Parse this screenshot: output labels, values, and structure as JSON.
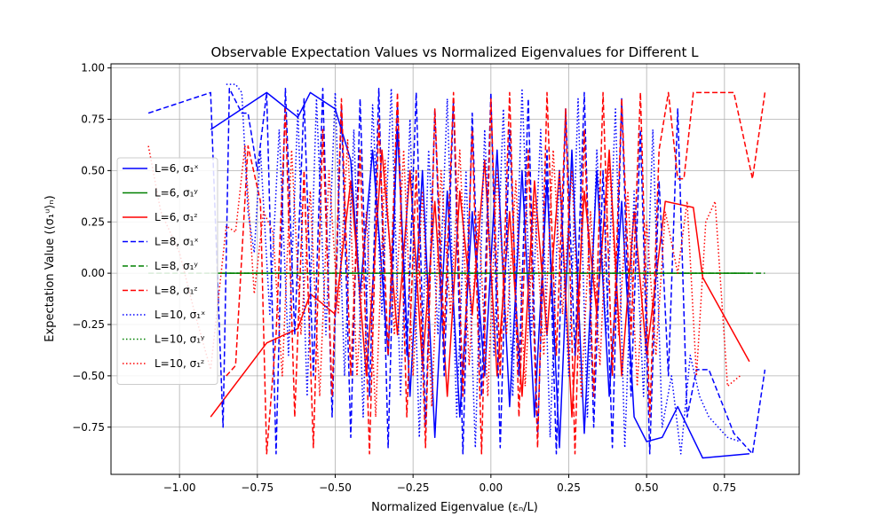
{
  "chart_data": {
    "type": "line",
    "title": "Observable Expectation Values vs Normalized Eigenvalues for Different L",
    "xlabel": "Normalized Eigenvalue (εₙ/L)",
    "ylabel": "Expectation Value (⟨σ₁ᵘ⟩ₙ)",
    "xlim": [
      -1.22,
      0.99
    ],
    "ylim": [
      -0.98,
      1.02
    ],
    "xticks": [
      -1.0,
      -0.75,
      -0.5,
      -0.25,
      0.0,
      0.25,
      0.5,
      0.75
    ],
    "xtick_labels": [
      "−1.00",
      "−0.75",
      "−0.50",
      "−0.25",
      "0.00",
      "0.25",
      "0.50",
      "0.75"
    ],
    "yticks": [
      -0.75,
      -0.5,
      -0.25,
      0.0,
      0.25,
      0.5,
      0.75,
      1.0
    ],
    "ytick_labels": [
      "−0.75",
      "−0.50",
      "−0.25",
      "0.00",
      "0.25",
      "0.50",
      "0.75",
      "1.00"
    ],
    "grid": true,
    "legend_position": "center-left",
    "series": [
      {
        "name": "L=6, σ₁ˣ",
        "color": "#0000ff",
        "linestyle": "solid",
        "x": [
          -0.9,
          -0.72,
          -0.62,
          -0.58,
          -0.5,
          -0.45,
          -0.42,
          -0.38,
          -0.33,
          -0.3,
          -0.26,
          -0.22,
          -0.18,
          -0.14,
          -0.1,
          -0.06,
          -0.02,
          0.02,
          0.06,
          0.1,
          0.14,
          0.18,
          0.22,
          0.26,
          0.3,
          0.34,
          0.38,
          0.42,
          0.46,
          0.5,
          0.55,
          0.6,
          0.68,
          0.83
        ],
        "y": [
          0.7,
          0.88,
          0.76,
          0.88,
          0.8,
          0.55,
          -0.1,
          0.6,
          -0.4,
          0.7,
          -0.6,
          0.5,
          -0.8,
          0.4,
          -0.7,
          0.3,
          -0.5,
          0.6,
          -0.65,
          0.5,
          -0.7,
          0.45,
          -0.85,
          0.6,
          -0.78,
          0.5,
          -0.6,
          0.35,
          -0.7,
          -0.82,
          -0.8,
          -0.65,
          -0.9,
          -0.88
        ]
      },
      {
        "name": "L=6, σ₁ʸ",
        "color": "#008000",
        "linestyle": "solid",
        "x": [
          -0.9,
          0.83
        ],
        "y": [
          0.0,
          0.0
        ]
      },
      {
        "name": "L=6, σ₁ᶻ",
        "color": "#ff0000",
        "linestyle": "solid",
        "x": [
          -0.9,
          -0.72,
          -0.62,
          -0.58,
          -0.5,
          -0.45,
          -0.4,
          -0.35,
          -0.3,
          -0.26,
          -0.22,
          -0.18,
          -0.14,
          -0.1,
          -0.06,
          -0.02,
          0.02,
          0.06,
          0.1,
          0.14,
          0.18,
          0.22,
          0.26,
          0.3,
          0.34,
          0.38,
          0.42,
          0.46,
          0.5,
          0.56,
          0.65,
          0.68,
          0.83
        ],
        "y": [
          -0.7,
          -0.34,
          -0.27,
          -0.1,
          -0.2,
          0.45,
          -0.5,
          0.6,
          -0.3,
          0.5,
          -0.45,
          0.35,
          -0.6,
          0.4,
          -0.2,
          0.55,
          -0.5,
          0.3,
          -0.6,
          0.45,
          -0.3,
          0.5,
          -0.7,
          0.4,
          -0.2,
          0.6,
          -0.5,
          0.3,
          -0.4,
          0.35,
          0.32,
          -0.02,
          -0.43
        ]
      },
      {
        "name": "L=8, σ₁ˣ",
        "color": "#0000ff",
        "linestyle": "dashed",
        "x": [
          -1.1,
          -0.9,
          -0.86,
          -0.84,
          -0.8,
          -0.78,
          -0.75,
          -0.72,
          -0.69,
          -0.66,
          -0.63,
          -0.6,
          -0.57,
          -0.54,
          -0.51,
          -0.48,
          -0.45,
          -0.42,
          -0.39,
          -0.36,
          -0.33,
          -0.3,
          -0.27,
          -0.24,
          -0.21,
          -0.18,
          -0.15,
          -0.12,
          -0.09,
          -0.06,
          -0.03,
          0.0,
          0.03,
          0.06,
          0.09,
          0.12,
          0.15,
          0.18,
          0.21,
          0.24,
          0.27,
          0.3,
          0.33,
          0.36,
          0.39,
          0.42,
          0.45,
          0.48,
          0.51,
          0.54,
          0.57,
          0.6,
          0.63,
          0.66,
          0.7,
          0.78,
          0.84,
          0.88
        ],
        "y": [
          0.78,
          0.88,
          -0.75,
          0.9,
          0.78,
          0.78,
          0.5,
          0.88,
          -0.88,
          0.9,
          -0.3,
          0.85,
          -0.5,
          0.9,
          -0.7,
          0.8,
          -0.8,
          0.85,
          -0.6,
          0.9,
          -0.85,
          0.82,
          -0.4,
          0.88,
          -0.75,
          0.8,
          -0.5,
          0.85,
          -0.88,
          0.78,
          -0.6,
          0.88,
          -0.85,
          0.7,
          -0.5,
          0.85,
          -0.8,
          0.6,
          -0.88,
          0.8,
          -0.4,
          0.88,
          -0.75,
          0.5,
          -0.85,
          0.85,
          -0.6,
          0.7,
          -0.88,
          0.45,
          -0.5,
          0.8,
          -0.7,
          -0.47,
          -0.47,
          -0.78,
          -0.88,
          -0.47
        ]
      },
      {
        "name": "L=8, σ₁ʸ",
        "color": "#008000",
        "linestyle": "dashed",
        "x": [
          -1.1,
          0.88
        ],
        "y": [
          0.0,
          0.0
        ]
      },
      {
        "name": "L=8, σ₁ᶻ",
        "color": "#ff0000",
        "linestyle": "dashed",
        "x": [
          -0.85,
          -0.82,
          -0.78,
          -0.74,
          -0.72,
          -0.69,
          -0.66,
          -0.63,
          -0.6,
          -0.57,
          -0.54,
          -0.51,
          -0.48,
          -0.45,
          -0.42,
          -0.39,
          -0.36,
          -0.33,
          -0.3,
          -0.27,
          -0.24,
          -0.21,
          -0.18,
          -0.15,
          -0.12,
          -0.09,
          -0.06,
          -0.03,
          0.0,
          0.03,
          0.06,
          0.09,
          0.12,
          0.15,
          0.18,
          0.21,
          0.24,
          0.27,
          0.3,
          0.33,
          0.36,
          0.39,
          0.42,
          0.45,
          0.48,
          0.51,
          0.54,
          0.57,
          0.6,
          0.62,
          0.65,
          0.7,
          0.75,
          0.78,
          0.82,
          0.84,
          0.88
        ],
        "y": [
          -0.5,
          -0.45,
          0.62,
          0.35,
          -0.88,
          -0.3,
          0.8,
          -0.7,
          0.5,
          -0.85,
          0.7,
          -0.6,
          0.85,
          -0.5,
          0.6,
          -0.88,
          0.75,
          -0.4,
          0.88,
          -0.7,
          0.5,
          -0.85,
          0.8,
          -0.3,
          0.88,
          -0.6,
          0.7,
          -0.88,
          0.85,
          -0.5,
          0.88,
          -0.7,
          0.6,
          -0.85,
          0.88,
          -0.4,
          0.8,
          -0.88,
          0.7,
          -0.6,
          0.88,
          -0.5,
          0.85,
          -0.3,
          0.88,
          -0.7,
          0.6,
          0.88,
          0.46,
          0.46,
          0.88,
          0.88,
          0.88,
          0.88,
          0.6,
          0.46,
          0.88
        ]
      },
      {
        "name": "L=10, σ₁ˣ",
        "color": "#0000ff",
        "linestyle": "dotted",
        "x": [
          -0.85,
          -0.82,
          -0.8,
          -0.78,
          -0.76,
          -0.74,
          -0.71,
          -0.68,
          -0.65,
          -0.62,
          -0.59,
          -0.56,
          -0.53,
          -0.5,
          -0.47,
          -0.44,
          -0.41,
          -0.38,
          -0.35,
          -0.32,
          -0.29,
          -0.26,
          -0.23,
          -0.2,
          -0.17,
          -0.14,
          -0.11,
          -0.08,
          -0.05,
          -0.02,
          0.01,
          0.04,
          0.07,
          0.1,
          0.13,
          0.16,
          0.19,
          0.22,
          0.25,
          0.28,
          0.31,
          0.34,
          0.37,
          0.4,
          0.43,
          0.46,
          0.49,
          0.52,
          0.55,
          0.58,
          0.61,
          0.64,
          0.67,
          0.7,
          0.73,
          0.76,
          0.8
        ],
        "y": [
          0.92,
          0.92,
          0.88,
          0.3,
          0.1,
          0.6,
          -0.2,
          0.7,
          -0.4,
          0.8,
          -0.6,
          0.85,
          -0.3,
          0.88,
          -0.5,
          0.7,
          -0.7,
          0.82,
          -0.2,
          0.9,
          -0.6,
          0.75,
          -0.8,
          0.6,
          -0.3,
          0.85,
          -0.7,
          0.5,
          -0.85,
          0.7,
          -0.4,
          0.8,
          -0.6,
          0.9,
          -0.3,
          0.7,
          -0.8,
          0.5,
          -0.5,
          0.85,
          -0.7,
          0.6,
          -0.3,
          0.8,
          -0.85,
          0.4,
          -0.6,
          0.7,
          -0.75,
          -0.5,
          -0.88,
          -0.4,
          -0.6,
          -0.7,
          -0.75,
          -0.8,
          -0.82
        ]
      },
      {
        "name": "L=10, σ₁ʸ",
        "color": "#008000",
        "linestyle": "dotted",
        "x": [
          -0.85,
          0.8
        ],
        "y": [
          0.0,
          0.0
        ]
      },
      {
        "name": "L=10, σ₁ᶻ",
        "color": "#ff0000",
        "linestyle": "dotted",
        "x": [
          -1.1,
          -1.06,
          -1.0,
          -0.95,
          -0.9,
          -0.85,
          -0.82,
          -0.79,
          -0.76,
          -0.73,
          -0.7,
          -0.67,
          -0.64,
          -0.61,
          -0.58,
          -0.55,
          -0.52,
          -0.49,
          -0.46,
          -0.43,
          -0.4,
          -0.37,
          -0.34,
          -0.31,
          -0.28,
          -0.25,
          -0.22,
          -0.19,
          -0.16,
          -0.13,
          -0.1,
          -0.07,
          -0.04,
          -0.01,
          0.02,
          0.05,
          0.08,
          0.11,
          0.14,
          0.17,
          0.2,
          0.23,
          0.26,
          0.29,
          0.32,
          0.35,
          0.38,
          0.41,
          0.44,
          0.47,
          0.5,
          0.53,
          0.56,
          0.6,
          0.63,
          0.66,
          0.69,
          0.72,
          0.76,
          0.8
        ],
        "y": [
          0.62,
          0.3,
          0.1,
          -0.2,
          -0.47,
          0.23,
          0.2,
          0.62,
          -0.1,
          0.3,
          0.2,
          -0.5,
          0.6,
          -0.3,
          0.4,
          -0.6,
          0.5,
          -0.2,
          0.65,
          -0.5,
          0.3,
          -0.7,
          0.55,
          -0.3,
          0.6,
          -0.5,
          0.4,
          -0.65,
          0.5,
          -0.2,
          0.6,
          -0.45,
          0.3,
          -0.6,
          0.5,
          -0.3,
          0.45,
          -0.55,
          0.35,
          -0.4,
          0.6,
          -0.2,
          0.5,
          -0.6,
          0.3,
          -0.45,
          0.55,
          -0.3,
          0.4,
          -0.55,
          0.25,
          -0.4,
          0.3,
          0.0,
          0.35,
          -0.5,
          0.25,
          0.35,
          -0.55,
          -0.5
        ]
      }
    ]
  }
}
